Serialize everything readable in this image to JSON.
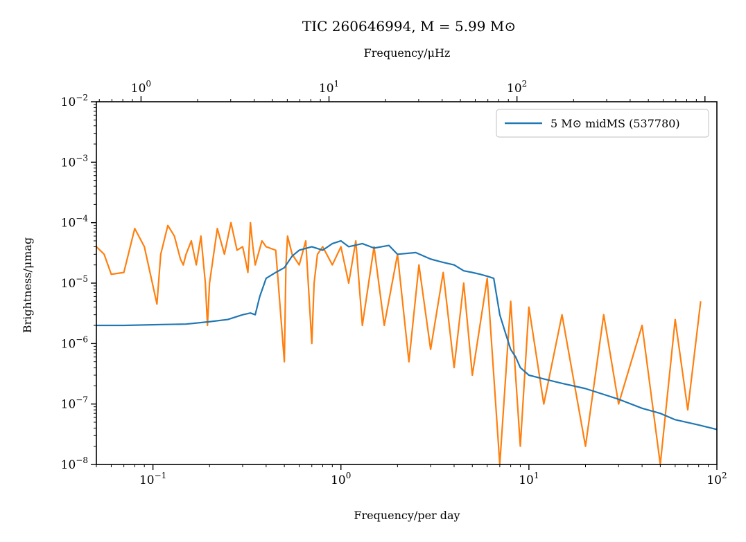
{
  "chart_data": {
    "type": "line",
    "title": "TIC 260646994, M = 5.99 M⊙",
    "xlabel": "Frequency/per day",
    "ylabel": "Brightness/μmag",
    "x2label": "Frequency/μHz",
    "xscale": "log",
    "yscale": "log",
    "xlim": [
      0.05,
      100
    ],
    "ylim": [
      1e-08,
      0.01
    ],
    "x2lim": [
      0.5787,
      1157.4
    ],
    "grid": false,
    "legend_position": "top-right",
    "x_ticks": [
      {
        "base": "10",
        "exp": "−1"
      },
      {
        "base": "10",
        "exp": "0"
      },
      {
        "base": "10",
        "exp": "1"
      },
      {
        "base": "10",
        "exp": "2"
      }
    ],
    "x2_ticks": [
      {
        "base": "10",
        "exp": "0"
      },
      {
        "base": "10",
        "exp": "1"
      },
      {
        "base": "10",
        "exp": "2"
      }
    ],
    "y_ticks": [
      {
        "base": "10",
        "exp": "−8"
      },
      {
        "base": "10",
        "exp": "−7"
      },
      {
        "base": "10",
        "exp": "−6"
      },
      {
        "base": "10",
        "exp": "−5"
      },
      {
        "base": "10",
        "exp": "−4"
      },
      {
        "base": "10",
        "exp": "−3"
      },
      {
        "base": "10",
        "exp": "−2"
      }
    ],
    "series": [
      {
        "name": "5 M⊙ midMS (537780)",
        "color": "#1f77b4",
        "x": [
          0.05,
          0.07,
          0.1,
          0.15,
          0.2,
          0.25,
          0.3,
          0.33,
          0.35,
          0.37,
          0.4,
          0.45,
          0.5,
          0.55,
          0.6,
          0.7,
          0.8,
          0.9,
          1.0,
          1.1,
          1.3,
          1.5,
          1.8,
          2.0,
          2.5,
          3.0,
          3.5,
          4.0,
          4.5,
          5.0,
          5.5,
          6.0,
          6.5,
          7.0,
          7.5,
          8.0,
          8.5,
          9.0,
          10,
          12,
          15,
          20,
          30,
          40,
          50,
          60,
          80,
          100
        ],
        "y": [
          2e-06,
          2e-06,
          2.05e-06,
          2.1e-06,
          2.3e-06,
          2.5e-06,
          3e-06,
          3.2e-06,
          3e-06,
          6e-06,
          1.2e-05,
          1.5e-05,
          1.8e-05,
          2.8e-05,
          3.5e-05,
          4e-05,
          3.5e-05,
          4.5e-05,
          5e-05,
          4e-05,
          4.5e-05,
          3.8e-05,
          4.2e-05,
          3e-05,
          3.2e-05,
          2.5e-05,
          2.2e-05,
          2e-05,
          1.6e-05,
          1.5e-05,
          1.4e-05,
          1.3e-05,
          1.2e-05,
          3e-06,
          1.5e-06,
          8e-07,
          6e-07,
          4e-07,
          3e-07,
          2.6e-07,
          2.2e-07,
          1.8e-07,
          1.2e-07,
          8.5e-08,
          7e-08,
          5.5e-08,
          4.5e-08,
          3.8e-08
        ]
      },
      {
        "name": "",
        "color": "#ff7f0e",
        "x": [
          0.05,
          0.055,
          0.06,
          0.07,
          0.08,
          0.09,
          0.1,
          0.105,
          0.11,
          0.12,
          0.13,
          0.14,
          0.145,
          0.15,
          0.16,
          0.17,
          0.18,
          0.19,
          0.195,
          0.2,
          0.22,
          0.24,
          0.26,
          0.28,
          0.3,
          0.31,
          0.32,
          0.33,
          0.34,
          0.35,
          0.38,
          0.4,
          0.45,
          0.5,
          0.51,
          0.52,
          0.55,
          0.6,
          0.65,
          0.7,
          0.72,
          0.75,
          0.8,
          0.9,
          1.0,
          1.1,
          1.2,
          1.3,
          1.5,
          1.7,
          2.0,
          2.3,
          2.6,
          3.0,
          3.5,
          4.0,
          4.5,
          5.0,
          6.0,
          7.0,
          8.0,
          9.0,
          10,
          12,
          15,
          20,
          25,
          30,
          40,
          50,
          60,
          70,
          82
        ],
        "y": [
          4e-05,
          3e-05,
          1.4e-05,
          1.5e-05,
          8e-05,
          4e-05,
          9e-06,
          4.5e-06,
          3e-05,
          9e-05,
          6e-05,
          2.5e-05,
          2e-05,
          3e-05,
          5e-05,
          2e-05,
          6e-05,
          1e-05,
          2e-06,
          1e-05,
          8e-05,
          3e-05,
          0.0001,
          3.5e-05,
          4e-05,
          2.5e-05,
          1.5e-05,
          0.0001,
          4e-05,
          2e-05,
          5e-05,
          4e-05,
          3.5e-05,
          5e-07,
          2e-05,
          6e-05,
          3e-05,
          2e-05,
          5e-05,
          1e-06,
          1e-05,
          3e-05,
          4e-05,
          2e-05,
          4e-05,
          1e-05,
          5e-05,
          2e-06,
          4e-05,
          2e-06,
          3e-05,
          5e-07,
          2e-05,
          8e-07,
          1.5e-05,
          4e-07,
          1e-05,
          3e-07,
          1.2e-05,
          1e-08,
          5e-06,
          2e-08,
          4e-06,
          1e-07,
          3e-06,
          2e-08,
          3e-06,
          1e-07,
          2e-06,
          1e-08,
          2.5e-06,
          8e-08,
          5e-06
        ]
      }
    ]
  }
}
